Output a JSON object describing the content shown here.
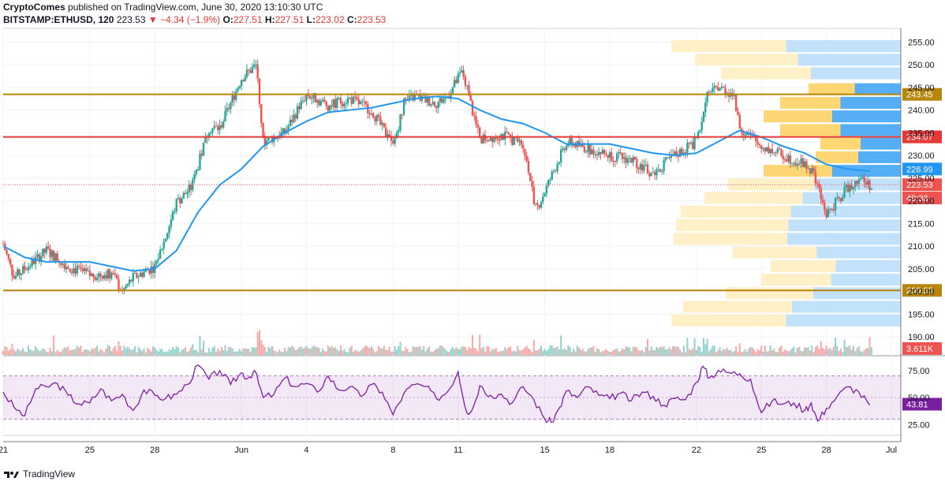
{
  "header": {
    "brand": "CryptoComes",
    "published": "published on TradingView.com, June 30, 2020 13:10:30 UTC",
    "symbol": "BITSTAMP:ETHUSD, 120",
    "last": "223.53",
    "change": "−4.34 (−1.9%)",
    "o_label": "O:",
    "o_value": "227.51",
    "h_label": "H:",
    "h_value": "227.51",
    "l_label": "L:",
    "l_value": "223.02",
    "c_label": "C:",
    "c_value": "223.53"
  },
  "footer": {
    "label": "TradingView"
  },
  "colors": {
    "up": "#26a69a",
    "down": "#ef5350",
    "ma": "#2196f3",
    "rsi": "#7b1fa2"
  },
  "chart_data": [
    {
      "type": "candlestick",
      "title": "",
      "ylim": [
        186,
        258
      ],
      "y_ticks": [
        190,
        195,
        200,
        205,
        210,
        215,
        220,
        225,
        230,
        235,
        240,
        245,
        250,
        255
      ],
      "y_tick_labels": [
        "190.00",
        "195.00",
        "200.00",
        "205.00",
        "210.00",
        "215.00",
        "220.00",
        "225.00",
        "230.00",
        "235.00",
        "240.00",
        "245.00",
        "250.00",
        "255.00"
      ],
      "x_ticks": [
        "21",
        "25",
        "28",
        "Jun",
        "4",
        "8",
        "11",
        "15",
        "18",
        "22",
        "25",
        "28",
        "Jul"
      ],
      "x_tick_days": [
        21,
        25,
        28,
        32,
        35,
        39,
        42,
        46,
        49,
        53,
        56,
        59,
        62
      ],
      "x_range_days": [
        21,
        62
      ],
      "price_path_days": [
        21,
        21.5,
        22.5,
        23,
        24,
        25,
        26,
        26.5,
        27,
        28,
        28.5,
        29,
        29.7,
        30.5,
        31,
        31.5,
        32,
        32.7,
        33,
        34,
        35,
        36,
        37,
        38,
        39,
        39.5,
        40,
        41,
        41.5,
        42.2,
        43,
        44,
        45,
        45.6,
        46,
        47,
        48,
        49,
        50,
        51,
        52,
        53,
        53.5,
        54,
        54.7,
        55,
        56,
        57,
        58,
        58.4,
        59,
        60,
        60.5,
        61
      ],
      "price_path_close": [
        210.5,
        203,
        207,
        209,
        205.5,
        203.5,
        204,
        200,
        203,
        205.5,
        212,
        219.5,
        223,
        236,
        236,
        241.5,
        247,
        250,
        233,
        235,
        243.5,
        241,
        242.5,
        240,
        232,
        241.5,
        243,
        241.5,
        243,
        248.5,
        233.5,
        234.5,
        232.5,
        218,
        222,
        233,
        231.5,
        230,
        229,
        226,
        230,
        233,
        243,
        245,
        243.5,
        236,
        232,
        230,
        228,
        226,
        217,
        223,
        225,
        223.5
      ],
      "horizontal_levels": [
        {
          "value": 243.45,
          "label": "243.45",
          "color": "#b8860b"
        },
        {
          "value": 234.07,
          "label": "234.07",
          "color": "#e53935"
        },
        {
          "value": 200.22,
          "label": "200.22",
          "color": "#b8860b"
        }
      ],
      "price_labels": [
        {
          "value": 226.99,
          "label": "226.99",
          "color": "#2196f3"
        },
        {
          "value": 223.53,
          "label": "223.53",
          "color": "#ef5350"
        },
        {
          "value": 220.6,
          "label": "49:33",
          "color": "#ef5350"
        }
      ],
      "moving_average": {
        "color": "#2196f3",
        "days": [
          21,
          22,
          23,
          24,
          25,
          26,
          27,
          28,
          29,
          30,
          31,
          32,
          33,
          34,
          35,
          36,
          37,
          38,
          39,
          40,
          41,
          42,
          43,
          44,
          45,
          46,
          47,
          48,
          49,
          50,
          51,
          52,
          53,
          54,
          55,
          56,
          57,
          58,
          59,
          60,
          61
        ],
        "values": [
          210,
          207.5,
          206.5,
          206.5,
          206.5,
          205.5,
          204.5,
          205,
          209,
          217.5,
          223.5,
          227,
          232,
          235,
          237.5,
          239.5,
          240,
          240.5,
          241.5,
          242.5,
          243,
          242.5,
          240,
          238,
          237,
          235,
          232.5,
          232.5,
          232.5,
          231.5,
          230.5,
          230,
          230.5,
          233,
          235.5,
          234,
          232,
          230.5,
          228,
          227,
          226.5
        ]
      },
      "volume_profile_note_values": [
        {
          "price": 254,
          "left": 0.03
        },
        {
          "price": 251,
          "left": 0.13
        },
        {
          "price": 248,
          "left": 0.24
        },
        {
          "price": 244.5,
          "left": 0.61,
          "vah": true
        },
        {
          "price": 241.5,
          "left": 0.49
        },
        {
          "price": 238.5,
          "left": 0.42
        },
        {
          "price": 235.5,
          "left": 0.49
        },
        {
          "price": 232.5,
          "left": 0.66
        },
        {
          "price": 229.5,
          "left": 0.64
        },
        {
          "price": 226.5,
          "left": 0.42
        },
        {
          "price": 223.5,
          "left": 0.27
        },
        {
          "price": 220.5,
          "left": 0.17
        },
        {
          "price": 217.5,
          "left": 0.07
        },
        {
          "price": 214.5,
          "left": 0.05
        },
        {
          "price": 211.5,
          "left": 0.04
        },
        {
          "price": 208.5,
          "left": 0.29
        },
        {
          "price": 205.5,
          "left": 0.45
        },
        {
          "price": 202.5,
          "left": 0.41
        },
        {
          "price": 199.5,
          "left": 0.26
        },
        {
          "price": 196.5,
          "left": 0.08
        },
        {
          "price": 193.5,
          "left": 0.03
        }
      ]
    },
    {
      "type": "bar",
      "title": "",
      "series_name": "volume",
      "last_label": "3.611K"
    },
    {
      "type": "line",
      "title": "",
      "ylim": [
        15,
        88
      ],
      "y_ticks": [
        25,
        50,
        75
      ],
      "y_tick_labels": [
        "25.00",
        "50.00",
        "75.00"
      ],
      "band": [
        30,
        70
      ],
      "last_label": "43.81",
      "days": [
        21,
        21.5,
        22,
        22.5,
        23,
        23.5,
        24,
        24.5,
        25,
        25.5,
        26,
        26.5,
        27,
        27.5,
        28,
        28.5,
        29,
        29.5,
        30,
        30.5,
        31,
        31.5,
        32,
        32.3,
        32.6,
        33,
        33.5,
        34,
        34.5,
        35,
        35.5,
        36,
        36.5,
        37,
        37.5,
        38,
        38.5,
        39,
        39.5,
        40,
        40.5,
        41,
        41.5,
        42,
        42.4,
        42.7,
        43,
        43.5,
        44,
        44.5,
        45,
        45.5,
        46,
        46.3,
        46.7,
        47,
        47.5,
        48,
        48.5,
        49,
        49.5,
        50,
        50.5,
        51,
        51.5,
        52,
        52.5,
        53,
        53.3,
        53.6,
        54,
        54.5,
        55,
        55.5,
        56,
        56.5,
        57,
        57.5,
        58,
        58.3,
        58.6,
        59,
        59.5,
        60,
        60.5,
        61
      ],
      "values": [
        55,
        41,
        33,
        58,
        60,
        63,
        52,
        44,
        45,
        58,
        47,
        53,
        38,
        57,
        52,
        49,
        53,
        62,
        80,
        67,
        75,
        62,
        73,
        68,
        75,
        50,
        53,
        68,
        60,
        63,
        55,
        70,
        57,
        60,
        51,
        62,
        55,
        34,
        54,
        62,
        60,
        49,
        55,
        74,
        36,
        41,
        61,
        52,
        53,
        45,
        60,
        48,
        30,
        27,
        41,
        56,
        50,
        60,
        52,
        49,
        54,
        47,
        55,
        51,
        43,
        49,
        48,
        64,
        79,
        68,
        75,
        73,
        72,
        67,
        36,
        47,
        44,
        45,
        38,
        45,
        28,
        40,
        51,
        60,
        55,
        43
      ]
    }
  ]
}
